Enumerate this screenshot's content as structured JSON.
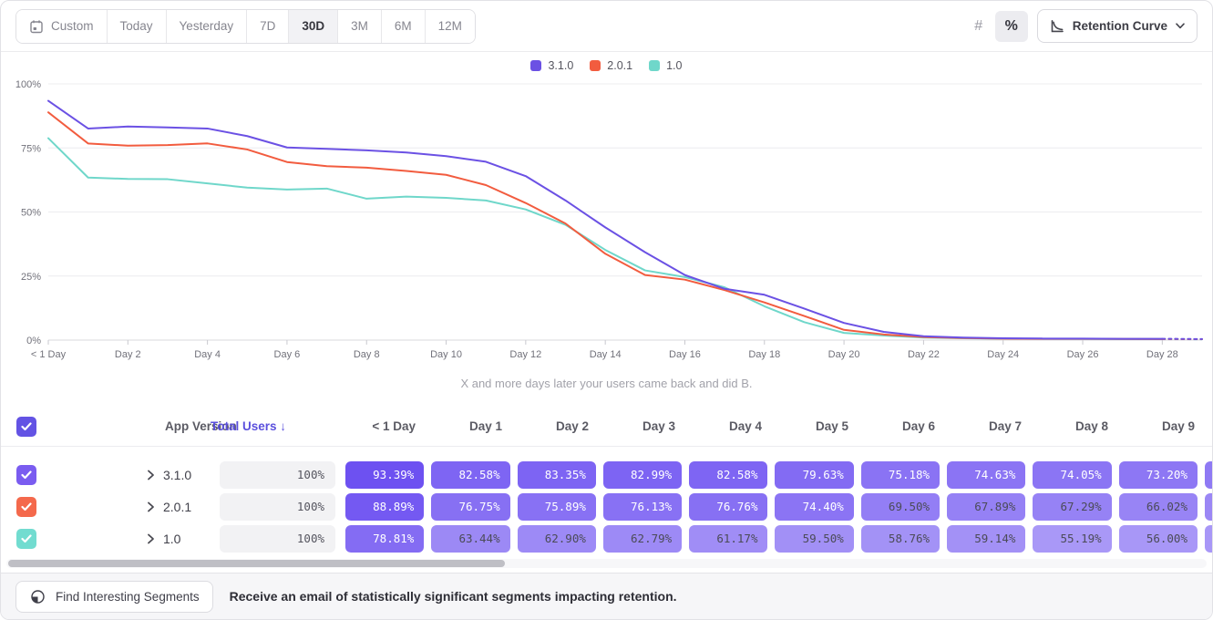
{
  "toolbar": {
    "ranges": [
      "Custom",
      "Today",
      "Yesterday",
      "7D",
      "30D",
      "3M",
      "6M",
      "12M"
    ],
    "selected_range": "30D",
    "count_mode_glyph": "#",
    "percent_mode_glyph": "%",
    "selected_mode": "percent",
    "chart_type_label": "Retention Curve"
  },
  "chart_data": {
    "type": "line",
    "title": "",
    "subtitle": "X and more days later your users came back and did B.",
    "xlabel": "",
    "ylabel": "",
    "ylim": [
      0,
      100
    ],
    "y_tick_labels": [
      "0%",
      "25%",
      "50%",
      "75%",
      "100%"
    ],
    "y_tick_values": [
      0,
      25,
      50,
      75,
      100
    ],
    "x_tick_labels": [
      "< 1 Day",
      "Day 2",
      "Day 4",
      "Day 6",
      "Day 8",
      "Day 10",
      "Day 12",
      "Day 14",
      "Day 16",
      "Day 18",
      "Day 20",
      "Day 22",
      "Day 24",
      "Day 26",
      "Day 28"
    ],
    "x_tick_days": [
      0,
      2,
      4,
      6,
      8,
      10,
      12,
      14,
      16,
      18,
      20,
      22,
      24,
      26,
      28
    ],
    "legend_position": "top-center",
    "grid": true,
    "dashed_tail_segments": 1,
    "series": [
      {
        "name": "3.1.0",
        "color": "#6b51e4",
        "values": [
          93.39,
          82.58,
          83.35,
          82.99,
          82.58,
          79.63,
          75.18,
          74.63,
          74.05,
          73.2,
          71.8,
          69.6,
          64.0,
          54.5,
          44.0,
          34.3,
          25.4,
          20.0,
          17.7,
          12.3,
          6.7,
          3.2,
          1.5,
          1.0,
          0.7,
          0.6,
          0.6,
          0.5,
          0.5,
          0.4
        ]
      },
      {
        "name": "2.0.1",
        "color": "#f25c3f",
        "values": [
          88.89,
          76.75,
          75.89,
          76.13,
          76.76,
          74.4,
          69.5,
          67.89,
          67.29,
          66.02,
          64.5,
          60.5,
          53.5,
          45.5,
          33.7,
          25.4,
          23.6,
          19.5,
          14.7,
          9.4,
          4.0,
          2.2,
          1.2,
          0.8,
          0.6,
          0.5,
          0.5,
          0.45,
          0.4,
          0.35
        ]
      },
      {
        "name": "1.0",
        "color": "#6fd7ca",
        "values": [
          78.81,
          63.44,
          62.9,
          62.79,
          61.17,
          59.5,
          58.76,
          59.14,
          55.19,
          56.0,
          55.5,
          54.5,
          51.0,
          45.0,
          35.2,
          27.2,
          24.6,
          20.6,
          13.2,
          7.0,
          2.8,
          1.8,
          1.0,
          0.7,
          0.55,
          0.5,
          0.45,
          0.4,
          0.4,
          0.3
        ]
      }
    ]
  },
  "table": {
    "select_all_checked": true,
    "select_all_color": "#6353e4",
    "version_header": "App Version",
    "total_header": "Total Users",
    "total_sort_glyph": "↓",
    "day_headers": [
      "< 1 Day",
      "Day 1",
      "Day 2",
      "Day 3",
      "Day 4",
      "Day 5",
      "Day 6",
      "Day 7",
      "Day 8",
      "Day 9"
    ],
    "cell_base_rgb": [
      99,
      69,
      240
    ],
    "cell_text_light": "#ffffff",
    "cell_text_dark": "#4b4b57",
    "rows": [
      {
        "name": "3.1.0",
        "checked": true,
        "checkbox_color": "#7a5cf0",
        "total": "100%",
        "cells": [
          93.39,
          82.58,
          83.35,
          82.99,
          82.58,
          79.63,
          75.18,
          74.63,
          74.05,
          73.2
        ]
      },
      {
        "name": "2.0.1",
        "checked": true,
        "checkbox_color": "#f4694c",
        "total": "100%",
        "cells": [
          88.89,
          76.75,
          75.89,
          76.13,
          76.76,
          74.4,
          69.5,
          67.89,
          67.29,
          66.02
        ]
      },
      {
        "name": "1.0",
        "checked": true,
        "checkbox_color": "#72dcd0",
        "total": "100%",
        "cells": [
          78.81,
          63.44,
          62.9,
          62.79,
          61.17,
          59.5,
          58.76,
          59.14,
          55.19,
          56.0
        ]
      }
    ]
  },
  "footer": {
    "button_label": "Find Interesting Segments",
    "message": "Receive an email of statistically significant segments impacting retention."
  }
}
